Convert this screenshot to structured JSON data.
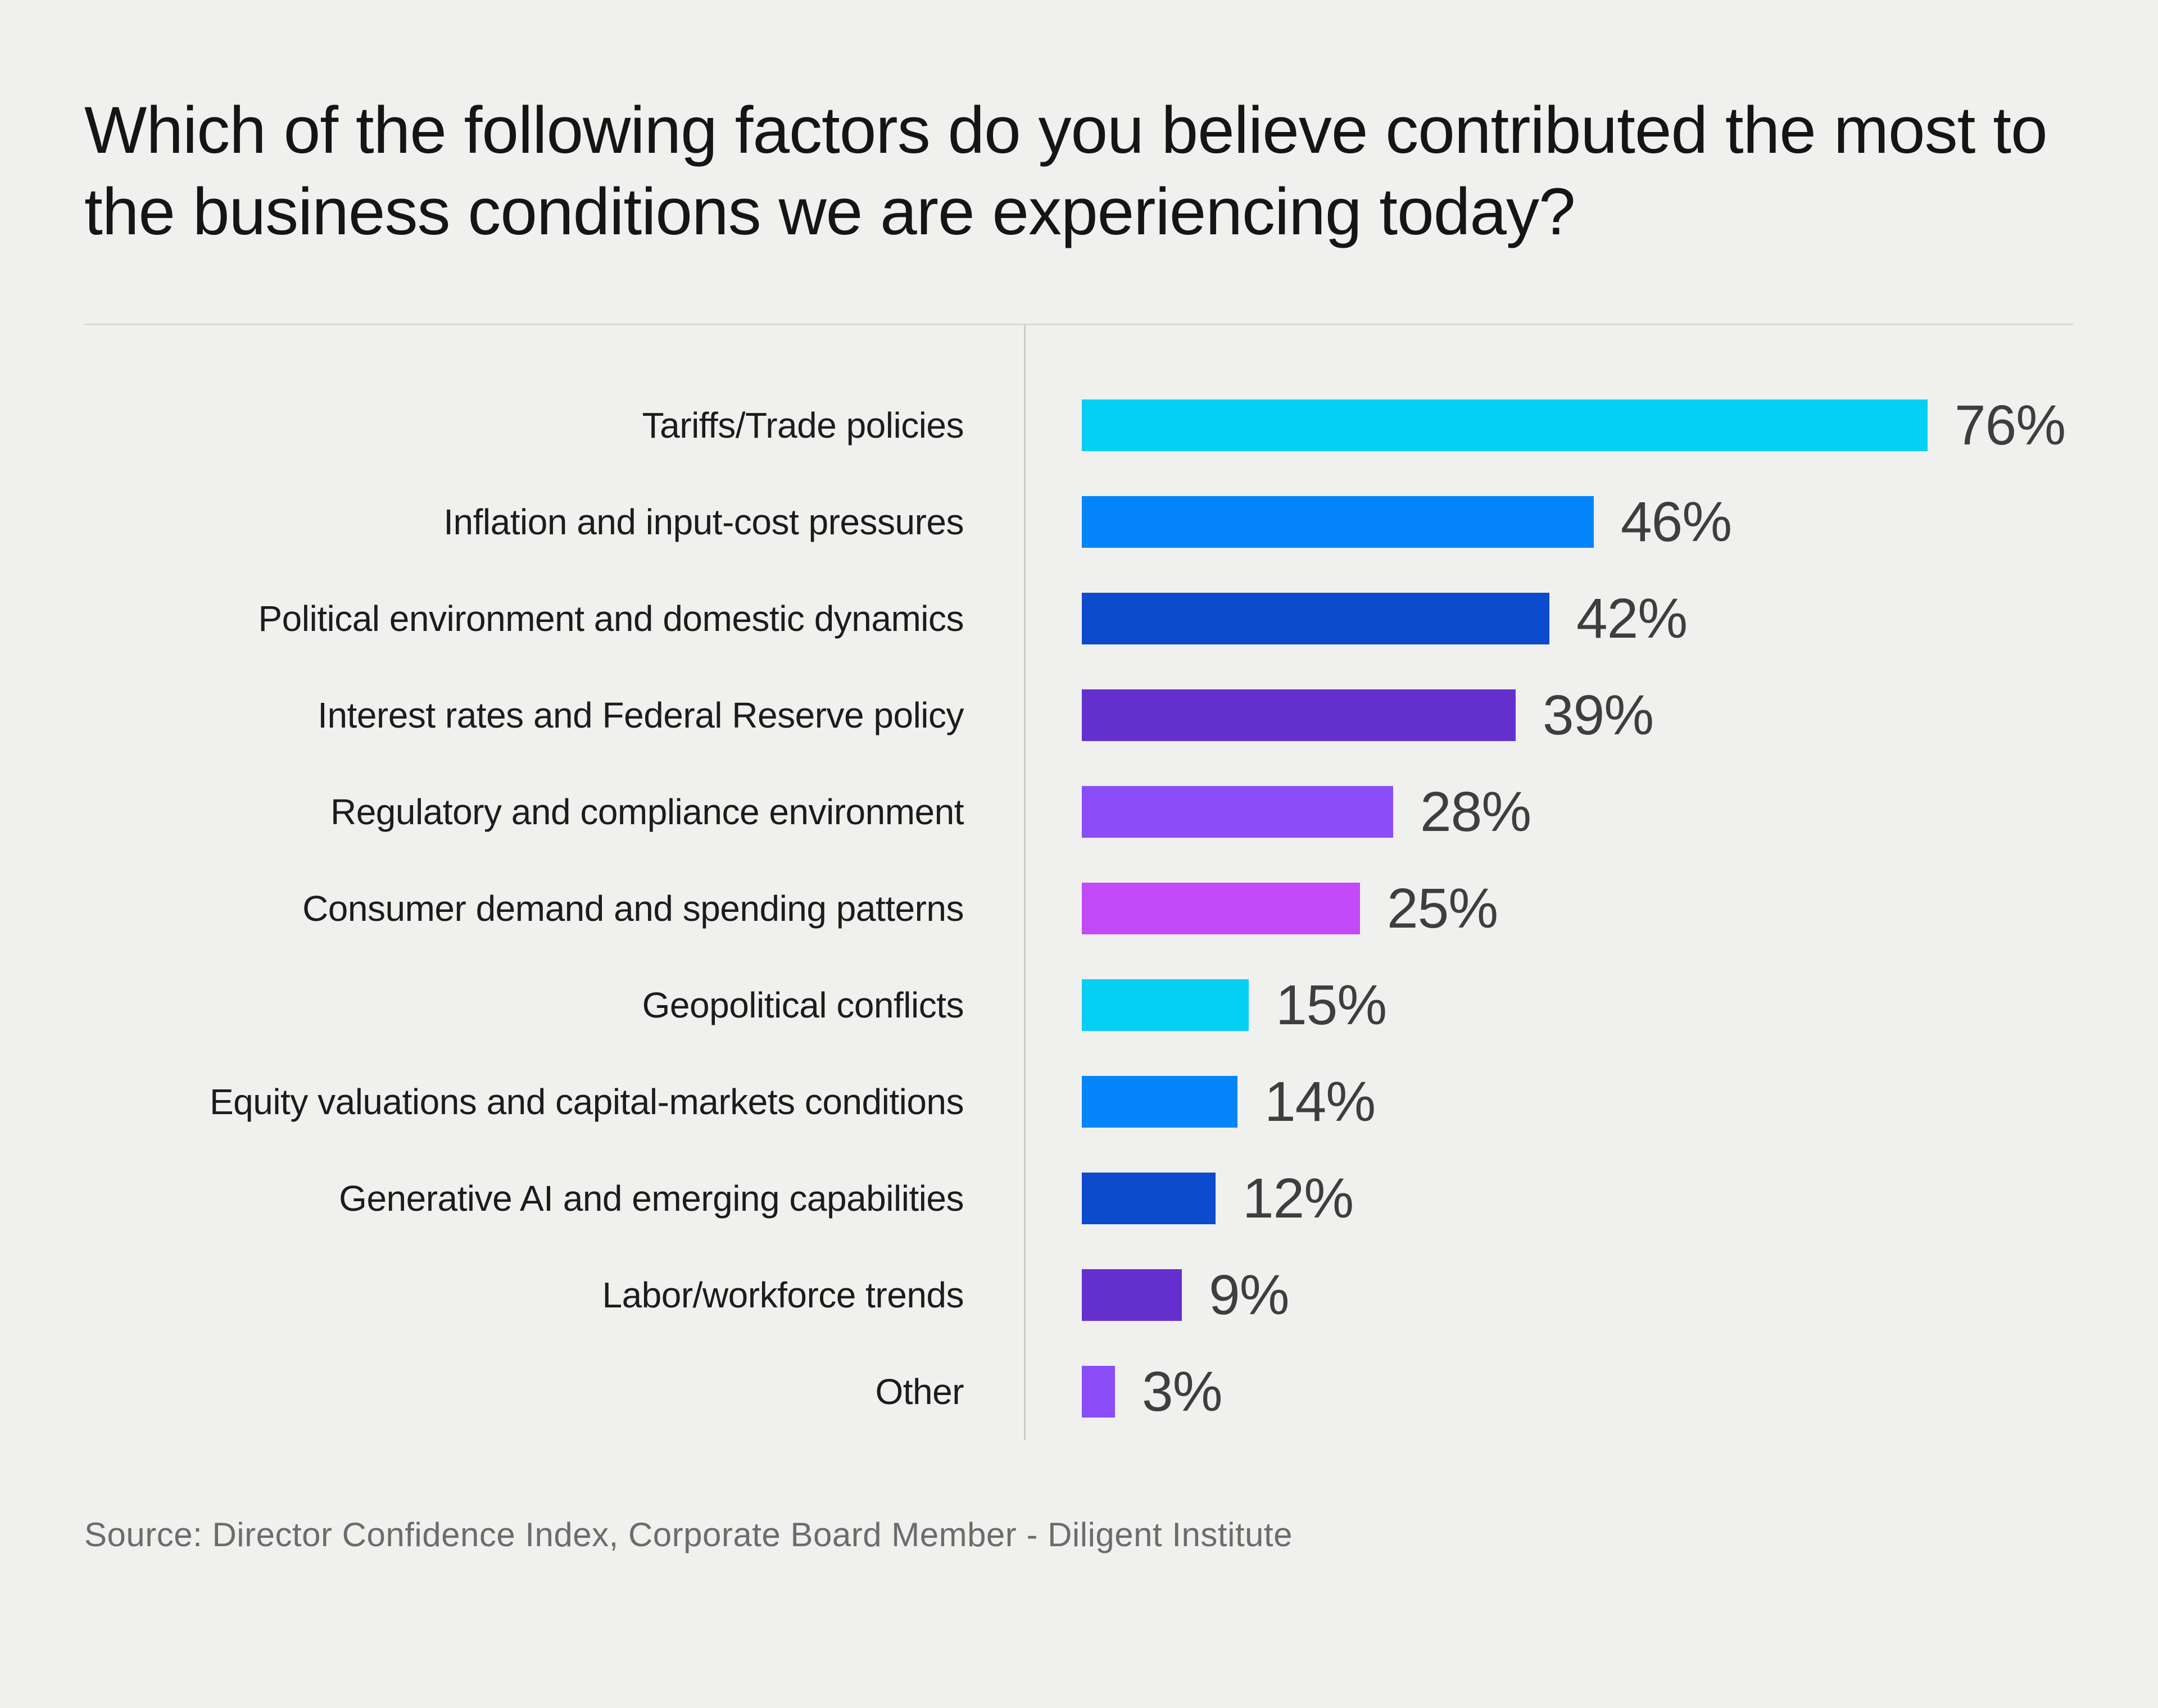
{
  "title": "Which of the following factors do you believe contributed the most to the business conditions we are experiencing today?",
  "source": "Source: Director Confidence Index, Corporate Board Member - Diligent Institute",
  "colors": {
    "background": "#f0f0ee",
    "title_text": "#151515",
    "label_text": "#1c1c1c",
    "value_text": "#3e3e3e",
    "source_text": "#6c6c6c",
    "divider": "#d8d8d7",
    "axis_line": "#cbcbcb"
  },
  "chart_data": {
    "type": "bar",
    "orientation": "horizontal",
    "unit": "%",
    "title": "Which of the following factors do you believe contributed the most to the business conditions we are experiencing today?",
    "xlabel": "",
    "ylabel": "",
    "xlim": [
      0,
      100
    ],
    "grid": false,
    "legend": false,
    "categories": [
      "Tariffs/Trade policies",
      "Inflation and input-cost pressures",
      "Political environment and domestic dynamics",
      "Interest rates and Federal Reserve policy",
      "Regulatory and compliance environment",
      "Consumer demand and spending patterns",
      "Geopolitical conflicts",
      "Equity valuations and capital-markets conditions",
      "Generative AI and emerging capabilities",
      "Labor/workforce trends",
      "Other"
    ],
    "values": [
      76,
      46,
      42,
      39,
      28,
      25,
      15,
      14,
      12,
      9,
      3
    ],
    "value_labels": [
      "76%",
      "46%",
      "42%",
      "39%",
      "28%",
      "25%",
      "15%",
      "14%",
      "12%",
      "9%",
      "3%"
    ],
    "bar_colors": [
      "#05cff2",
      "#0385f9",
      "#0d4bce",
      "#6330ce",
      "#8b4df8",
      "#c24af7",
      "#05cff2",
      "#0385f9",
      "#0d4bce",
      "#6330ce",
      "#8b4df8"
    ],
    "source": "Source: Director Confidence Index, Corporate Board Member - Diligent Institute"
  }
}
